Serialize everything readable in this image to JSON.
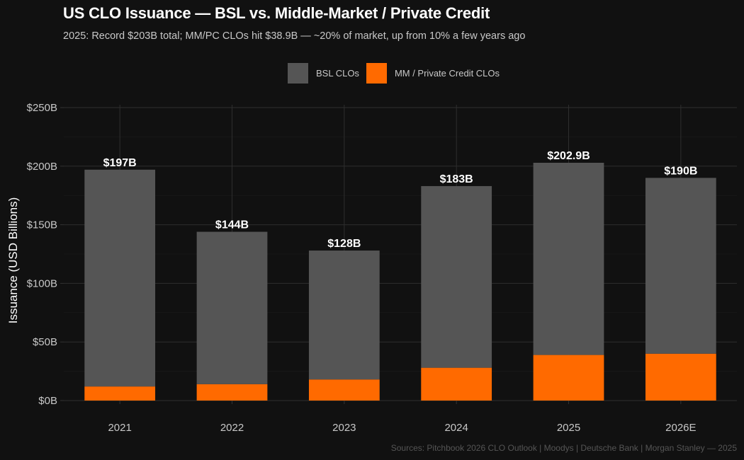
{
  "chart_data": {
    "type": "bar",
    "stacked": true,
    "title": "US CLO Issuance — BSL vs. Middle-Market / Private Credit",
    "subtitle": "2025: Record $203B total; MM/PC CLOs hit $38.9B — ~20% of market, up from 10% a few years ago",
    "xlabel": "",
    "ylabel": "Issuance (USD Billions)",
    "ylim": [
      0,
      250
    ],
    "yticks": [
      0,
      50,
      100,
      150,
      200,
      250
    ],
    "ytick_labels": [
      "$0B",
      "$50B",
      "$100B",
      "$150B",
      "$200B",
      "$250B"
    ],
    "grid": true,
    "legend_position": "top-center",
    "categories": [
      "2021",
      "2022",
      "2023",
      "2024",
      "2025",
      "2026E"
    ],
    "series": [
      {
        "name": "MM / Private Credit CLOs",
        "color": "#FF6A00",
        "values": [
          12,
          14,
          18,
          28,
          38.9,
          40
        ]
      },
      {
        "name": "BSL CLOs",
        "color": "#555555",
        "values": [
          185,
          130,
          110,
          155,
          164,
          150
        ]
      }
    ],
    "totals": [
      197,
      144,
      128,
      183,
      202.9,
      190
    ],
    "total_labels": [
      "$197B",
      "$144B",
      "$128B",
      "$183B",
      "$202.9B",
      "$190B"
    ],
    "source": "Sources: Pitchbook 2026 CLO Outlook | Moodys | Deutsche Bank | Morgan Stanley — 2025"
  },
  "legend": [
    {
      "label": "BSL CLOs",
      "color": "#555555"
    },
    {
      "label": "MM / Private Credit CLOs",
      "color": "#FF6A00"
    }
  ]
}
